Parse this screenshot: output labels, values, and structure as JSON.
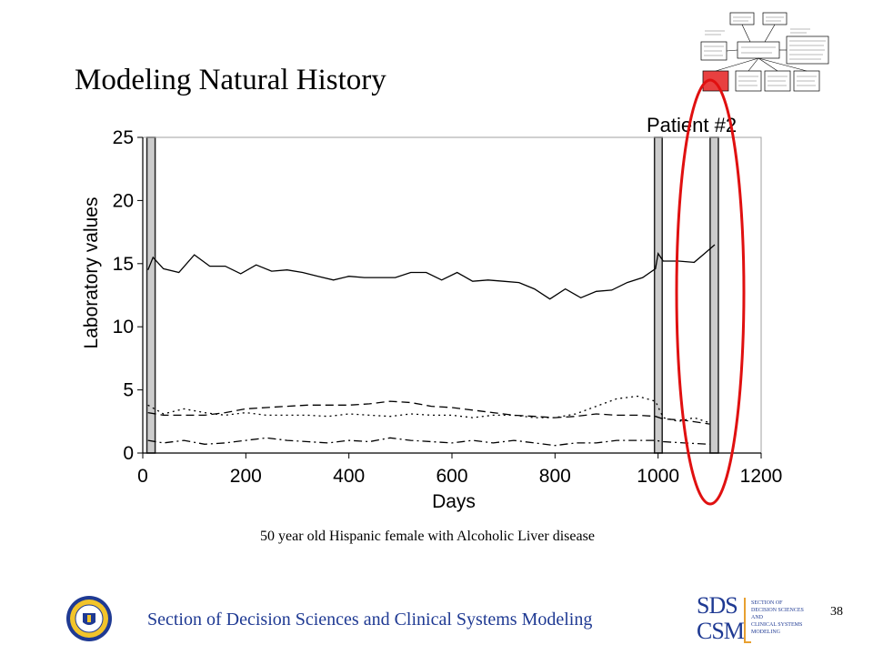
{
  "slide": {
    "title": "Modeling Natural History",
    "patient_label": "Patient #2",
    "caption": "50 year old Hispanic female with Alcoholic Liver disease",
    "footer": "Section of Decision Sciences and Clinical Systems Modeling",
    "page_number": "38"
  },
  "logo": {
    "line1": "SDS",
    "line2": "CSM",
    "side_lines": [
      "SECTION OF",
      "DECISION SCIENCES",
      "AND",
      "CLINICAL SYSTEMS",
      "MODELING"
    ]
  },
  "colors": {
    "footer_text": "#1f3a93",
    "highlight_ellipse": "#e01010",
    "highlight_box": "#e84040",
    "event_band": "#cccccc"
  },
  "chart_data": {
    "type": "line",
    "ylabel": "Laboratory values",
    "xlabel": "Days",
    "xlim": [
      0,
      1200
    ],
    "ylim": [
      0,
      25
    ],
    "x_ticks": [
      0,
      200,
      400,
      600,
      800,
      1000,
      1200
    ],
    "y_ticks": [
      0,
      5,
      10,
      15,
      20,
      25
    ],
    "event_bands": [
      [
        8,
        24
      ],
      [
        993,
        1008
      ],
      [
        1101,
        1117
      ]
    ],
    "series": [
      {
        "style": "solid",
        "x": [
          10,
          20,
          40,
          70,
          100,
          130,
          160,
          190,
          220,
          250,
          280,
          310,
          340,
          370,
          400,
          430,
          460,
          490,
          520,
          550,
          580,
          610,
          640,
          670,
          700,
          730,
          760,
          790,
          820,
          850,
          880,
          910,
          940,
          970,
          995,
          1000,
          1010,
          1040,
          1070,
          1090,
          1110
        ],
        "values": [
          14.5,
          15.5,
          14.6,
          14.3,
          15.7,
          14.8,
          14.8,
          14.2,
          14.9,
          14.4,
          14.5,
          14.3,
          14.0,
          13.7,
          14.0,
          13.9,
          13.9,
          13.9,
          14.3,
          14.3,
          13.7,
          14.3,
          13.6,
          13.7,
          13.6,
          13.5,
          13.0,
          12.2,
          13.0,
          12.3,
          12.8,
          12.9,
          13.5,
          13.9,
          14.6,
          15.8,
          15.2,
          15.2,
          15.1,
          15.8,
          16.5
        ]
      },
      {
        "style": "long-dash",
        "x": [
          10,
          40,
          80,
          120,
          160,
          200,
          240,
          280,
          320,
          360,
          400,
          440,
          480,
          520,
          560,
          600,
          640,
          680,
          720,
          760,
          800,
          840,
          880,
          920,
          960,
          995,
          1010,
          1050,
          1100
        ],
        "values": [
          3.2,
          3.0,
          3.0,
          3.0,
          3.2,
          3.5,
          3.6,
          3.7,
          3.8,
          3.8,
          3.8,
          3.9,
          4.1,
          4.0,
          3.7,
          3.6,
          3.4,
          3.2,
          3.0,
          2.9,
          2.8,
          2.9,
          3.1,
          3.0,
          3.0,
          2.9,
          2.7,
          2.6,
          2.3
        ]
      },
      {
        "style": "dotted",
        "x": [
          10,
          40,
          80,
          120,
          160,
          200,
          240,
          280,
          320,
          360,
          400,
          440,
          480,
          520,
          560,
          600,
          640,
          680,
          720,
          760,
          800,
          840,
          880,
          920,
          960,
          995,
          1010,
          1040,
          1070,
          1100
        ],
        "values": [
          3.8,
          3.1,
          3.5,
          3.2,
          3.0,
          3.2,
          3.0,
          3.0,
          3.0,
          2.9,
          3.1,
          3.0,
          2.9,
          3.1,
          3.0,
          3.0,
          2.8,
          3.0,
          3.0,
          2.8,
          2.8,
          3.1,
          3.7,
          4.3,
          4.5,
          4.1,
          2.8,
          2.5,
          2.8,
          2.4
        ]
      },
      {
        "style": "dash-dot",
        "x": [
          10,
          40,
          80,
          120,
          160,
          200,
          240,
          280,
          320,
          360,
          400,
          440,
          480,
          520,
          560,
          600,
          640,
          680,
          720,
          760,
          800,
          840,
          880,
          920,
          960,
          995,
          1010,
          1050,
          1100
        ],
        "values": [
          1.0,
          0.8,
          1.0,
          0.7,
          0.8,
          1.0,
          1.2,
          1.0,
          0.9,
          0.8,
          1.0,
          0.9,
          1.2,
          1.0,
          0.9,
          0.8,
          1.0,
          0.8,
          1.0,
          0.8,
          0.6,
          0.8,
          0.8,
          1.0,
          1.0,
          1.0,
          0.9,
          0.8,
          0.7
        ]
      }
    ]
  }
}
